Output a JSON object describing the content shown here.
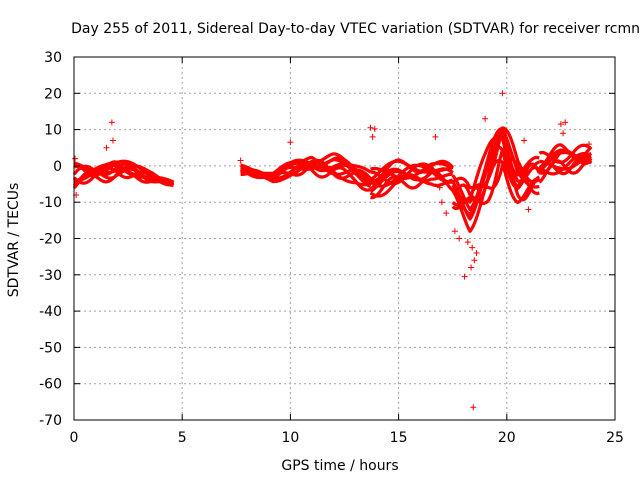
{
  "chart_data": {
    "type": "scatter",
    "title": "Day 255 of 2011, Sidereal Day-to-day VTEC variation (SDTVAR) for receiver rcmn",
    "xlabel": "GPS time / hours",
    "ylabel": "SDTVAR / TECUs",
    "xlim": [
      0,
      25
    ],
    "ylim": [
      -70,
      30
    ],
    "xticks": [
      0,
      5,
      10,
      15,
      20,
      25
    ],
    "yticks": [
      -70,
      -60,
      -50,
      -40,
      -30,
      -20,
      -10,
      0,
      10,
      20,
      30
    ],
    "grid": true,
    "marker": "+",
    "color": "#ff0000",
    "band_segments": [
      {
        "t0": 0.0,
        "t1": 4.6,
        "center": [
          [
            0,
            -3
          ],
          [
            1,
            -2
          ],
          [
            2,
            -1
          ],
          [
            3,
            -2
          ],
          [
            4.6,
            -5
          ]
        ],
        "spread": [
          [
            0,
            5
          ],
          [
            1,
            4
          ],
          [
            2,
            4
          ],
          [
            3,
            3
          ],
          [
            4.6,
            1
          ]
        ]
      },
      {
        "t0": 7.7,
        "t1": 13.7,
        "center": [
          [
            7.7,
            -1
          ],
          [
            8.5,
            -2
          ],
          [
            9.2,
            -3
          ],
          [
            10,
            -1
          ],
          [
            11,
            1
          ],
          [
            12,
            0
          ],
          [
            13,
            -2
          ],
          [
            13.7,
            -4
          ]
        ],
        "spread": [
          [
            7.7,
            2
          ],
          [
            9,
            2
          ],
          [
            10,
            3
          ],
          [
            11,
            5
          ],
          [
            12,
            5
          ],
          [
            13,
            4
          ],
          [
            13.7,
            5
          ]
        ]
      },
      {
        "t0": 13.7,
        "t1": 17.5,
        "center": [
          [
            13.7,
            -4
          ],
          [
            14.5,
            -3
          ],
          [
            15.5,
            -2
          ],
          [
            16.5,
            -1
          ],
          [
            17.5,
            -3
          ]
        ],
        "spread": [
          [
            13.7,
            6
          ],
          [
            15,
            6
          ],
          [
            16,
            5
          ],
          [
            17.5,
            5
          ]
        ]
      },
      {
        "t0": 17.5,
        "t1": 21.5,
        "center": [
          [
            17.5,
            -6
          ],
          [
            18.3,
            -10
          ],
          [
            19,
            -3
          ],
          [
            19.8,
            5
          ],
          [
            20.5,
            -2
          ],
          [
            21.5,
            -3
          ]
        ],
        "spread": [
          [
            17.5,
            7
          ],
          [
            18.3,
            10
          ],
          [
            19,
            10
          ],
          [
            19.8,
            14
          ],
          [
            20.5,
            10
          ],
          [
            21.5,
            8
          ]
        ]
      },
      {
        "t0": 21.5,
        "t1": 23.9,
        "center": [
          [
            21.5,
            -1
          ],
          [
            22.5,
            1
          ],
          [
            23.9,
            2
          ]
        ],
        "spread": [
          [
            21.5,
            6
          ],
          [
            22.5,
            6
          ],
          [
            23.9,
            5
          ]
        ]
      }
    ],
    "outliers": [
      {
        "x": 1.75,
        "y": 12
      },
      {
        "x": 1.8,
        "y": 7
      },
      {
        "x": 1.5,
        "y": 5
      },
      {
        "x": 0.05,
        "y": 2
      },
      {
        "x": 0.1,
        "y": -8
      },
      {
        "x": 7.7,
        "y": 1.5
      },
      {
        "x": 10.0,
        "y": 6.5
      },
      {
        "x": 13.7,
        "y": 10.5
      },
      {
        "x": 13.9,
        "y": 10.2
      },
      {
        "x": 13.8,
        "y": 8
      },
      {
        "x": 16.7,
        "y": 8
      },
      {
        "x": 16.9,
        "y": -6
      },
      {
        "x": 17.0,
        "y": -10
      },
      {
        "x": 17.2,
        "y": -13
      },
      {
        "x": 17.6,
        "y": -18
      },
      {
        "x": 17.8,
        "y": -20
      },
      {
        "x": 18.05,
        "y": -30.5
      },
      {
        "x": 18.2,
        "y": -21
      },
      {
        "x": 18.35,
        "y": -28
      },
      {
        "x": 18.5,
        "y": -26
      },
      {
        "x": 18.6,
        "y": -24
      },
      {
        "x": 18.4,
        "y": -22.5
      },
      {
        "x": 18.45,
        "y": -66.5
      },
      {
        "x": 19.0,
        "y": 13
      },
      {
        "x": 19.8,
        "y": 20
      },
      {
        "x": 20.8,
        "y": 7
      },
      {
        "x": 21.0,
        "y": -12
      },
      {
        "x": 22.5,
        "y": 11.5
      },
      {
        "x": 22.7,
        "y": 12
      },
      {
        "x": 22.6,
        "y": 9
      },
      {
        "x": 23.8,
        "y": 6
      }
    ]
  }
}
